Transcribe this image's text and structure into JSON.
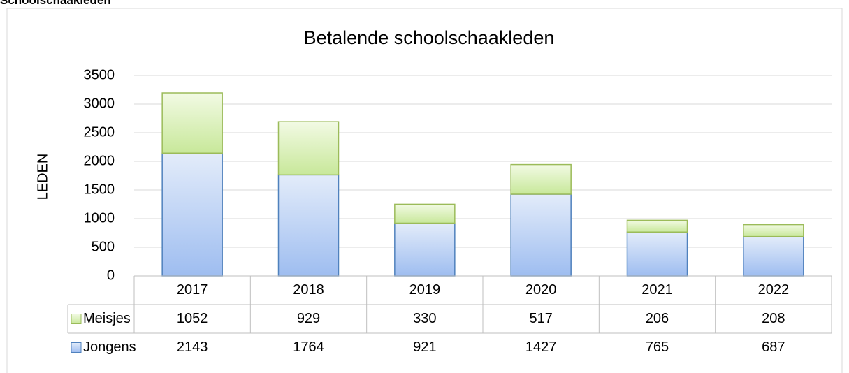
{
  "heading": "Schoolschaakleden",
  "chart_data": {
    "type": "stacked_bar",
    "title": "Betalende schoolschaakleden",
    "y_label": "LEDEN",
    "categories": [
      "2017",
      "2018",
      "2019",
      "2020",
      "2021",
      "2022"
    ],
    "series": [
      {
        "name": "Jongens",
        "color": "#4f81bd",
        "values": [
          2143,
          1764,
          921,
          1427,
          765,
          687
        ]
      },
      {
        "name": "Meisjes",
        "color": "#9bbb59",
        "values": [
          1052,
          929,
          330,
          517,
          206,
          208
        ]
      }
    ],
    "ylim": [
      0,
      3500
    ],
    "yticks": [
      0,
      500,
      1000,
      1500,
      2000,
      2500,
      3000,
      3500
    ],
    "grid": true,
    "data_table": true
  }
}
